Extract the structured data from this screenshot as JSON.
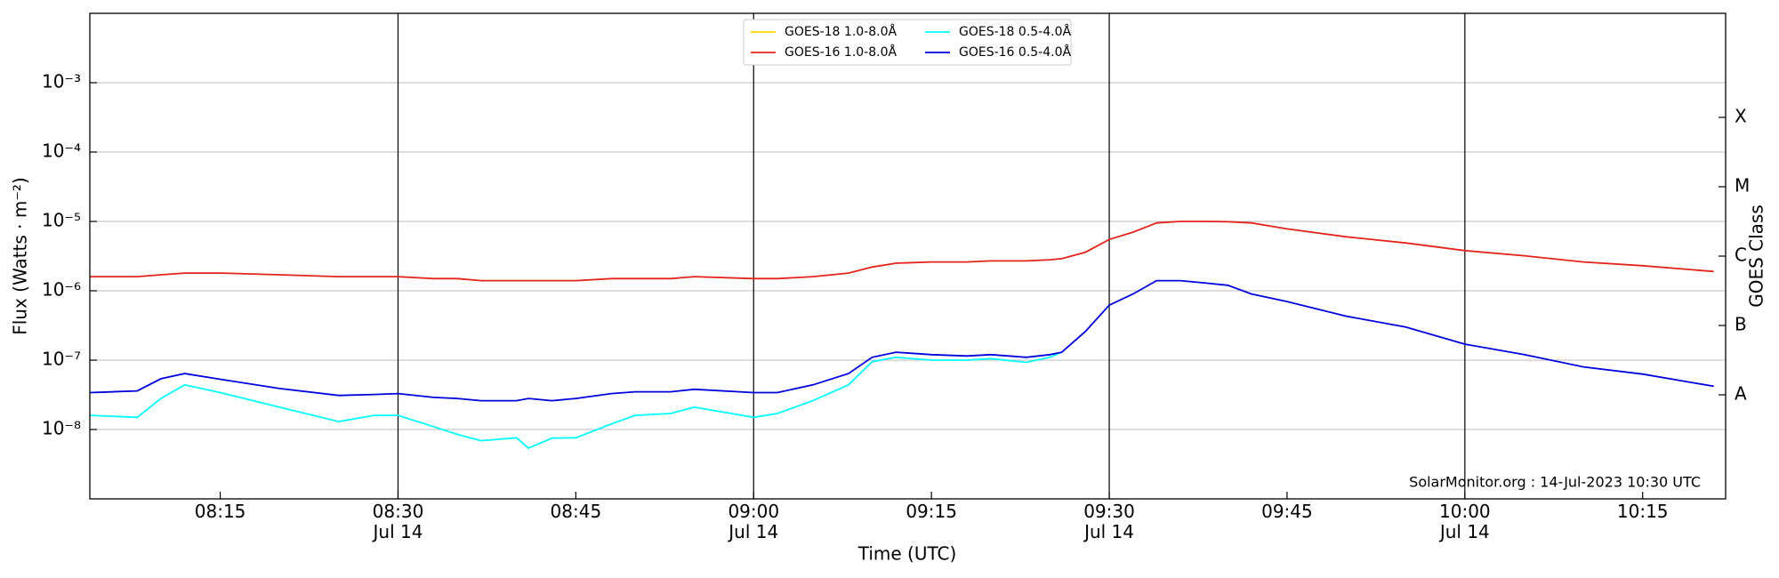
{
  "chart_data": {
    "type": "line",
    "xlabel": "Time (UTC)",
    "ylabel": "Flux (Watts · m⁻²)",
    "y2label": "GOES Class",
    "annotation": "SolarMonitor.org : 14-Jul-2023 10:30 UTC",
    "log_y": true,
    "grid": true,
    "legend": "upper center",
    "xlim": [
      "08:04",
      "10:22"
    ],
    "xticks": [
      "08:15",
      {
        "value": "08:30",
        "label": "08:30\nJul 14"
      },
      "08:45",
      {
        "value": "09:00",
        "label": "09:00\nJul 14"
      },
      "09:15",
      {
        "value": "09:30",
        "label": "09:30\nJul 14"
      },
      "09:45",
      {
        "value": "10:00",
        "label": "10:00\nJul 14"
      },
      "10:15"
    ],
    "vlines": [
      "08:30",
      "09:00",
      "09:30",
      "10:00"
    ],
    "ylim": [
      1e-09,
      0.01
    ],
    "yticks": [
      {
        "value": 0.001,
        "label": "10⁻³"
      },
      {
        "value": 0.0001,
        "label": "10⁻⁴"
      },
      {
        "value": 1e-05,
        "label": "10⁻⁵"
      },
      {
        "value": 1e-06,
        "label": "10⁻⁶"
      },
      {
        "value": 1e-07,
        "label": "10⁻⁷"
      },
      {
        "value": 1e-08,
        "label": "10⁻⁸"
      }
    ],
    "y2lim": [
      1e-09,
      0.01
    ],
    "y2ticks": [
      {
        "value": 0.000316,
        "label": "X"
      },
      {
        "value": 3.16e-05,
        "label": "M"
      },
      {
        "value": 3.16e-06,
        "label": "C"
      },
      {
        "value": 3.16e-07,
        "label": "B"
      },
      {
        "value": 3.16e-08,
        "label": "A"
      }
    ],
    "x": [
      "08:04",
      "08:08",
      "08:10",
      "08:12",
      "08:15",
      "08:20",
      "08:25",
      "08:28",
      "08:30",
      "08:33",
      "08:35",
      "08:37",
      "08:40",
      "08:41",
      "08:43",
      "08:45",
      "08:48",
      "08:50",
      "08:53",
      "08:55",
      "09:00",
      "09:02",
      "09:05",
      "09:08",
      "09:10",
      "09:12",
      "09:15",
      "09:18",
      "09:20",
      "09:23",
      "09:25",
      "09:26",
      "09:28",
      "09:30",
      "09:32",
      "09:34",
      "09:36",
      "09:38",
      "09:40",
      "09:42",
      "09:45",
      "09:50",
      "09:55",
      "10:00",
      "10:05",
      "10:10",
      "10:15",
      "10:21"
    ],
    "series": [
      {
        "name": "GOES-18 1.0-8.0Å",
        "color": "#ffd700",
        "values": [
          null,
          null,
          null,
          null,
          null,
          null,
          null,
          null,
          null,
          null,
          null,
          null,
          null,
          null,
          null,
          null,
          null,
          null,
          null,
          null,
          null,
          null,
          null,
          null,
          null,
          null,
          null,
          null,
          null,
          null,
          null,
          null,
          null,
          null,
          null,
          null,
          null,
          null,
          null,
          null,
          null,
          null,
          null,
          null,
          null,
          null,
          null,
          null
        ]
      },
      {
        "name": "GOES-16 1.0-8.0Å",
        "color": "#e3241b",
        "values": [
          1.6e-06,
          1.6e-06,
          1.7e-06,
          1.8e-06,
          1.8e-06,
          1.7e-06,
          1.6e-06,
          1.6e-06,
          1.6e-06,
          1.5e-06,
          1.5e-06,
          1.4e-06,
          1.4e-06,
          1.4e-06,
          1.4e-06,
          1.4e-06,
          1.5e-06,
          1.5e-06,
          1.5e-06,
          1.6e-06,
          1.5e-06,
          1.5e-06,
          1.6e-06,
          1.8e-06,
          2.2e-06,
          2.5e-06,
          2.6e-06,
          2.6e-06,
          2.7e-06,
          2.7e-06,
          2.8e-06,
          2.9e-06,
          3.6e-06,
          5.5e-06,
          7e-06,
          9.5e-06,
          1e-05,
          1e-05,
          9.9e-06,
          9.5e-06,
          7.8e-06,
          6e-06,
          4.9e-06,
          3.8e-06,
          3.2e-06,
          2.6e-06,
          2.3e-06,
          1.9e-06
        ]
      },
      {
        "name": "GOES-18 0.5-4.0Å",
        "color": "#00ffff",
        "values": [
          1.6e-08,
          1.5e-08,
          2.8e-08,
          4.4e-08,
          3.4e-08,
          2.1e-08,
          1.3e-08,
          1.6e-08,
          1.6e-08,
          1.1e-08,
          8.5e-09,
          6.9e-09,
          7.6e-09,
          5.4e-09,
          7.5e-09,
          7.6e-09,
          1.2e-08,
          1.6e-08,
          1.7e-08,
          2.1e-08,
          1.5e-08,
          1.7e-08,
          2.6e-08,
          4.4e-08,
          9.5e-08,
          1.1e-07,
          1e-07,
          1e-07,
          1.05e-07,
          9.3e-08,
          1.1e-07,
          1.3e-07,
          null,
          null,
          null,
          null,
          null,
          null,
          null,
          null,
          null,
          null,
          null,
          null,
          null,
          null,
          null,
          null
        ]
      },
      {
        "name": "GOES-16 0.5-4.0Å",
        "color": "#0000dd",
        "values": [
          3.4e-08,
          3.6e-08,
          5.4e-08,
          6.4e-08,
          5.3e-08,
          3.9e-08,
          3.1e-08,
          3.2e-08,
          3.3e-08,
          2.9e-08,
          2.8e-08,
          2.6e-08,
          2.6e-08,
          2.8e-08,
          2.6e-08,
          2.8e-08,
          3.3e-08,
          3.5e-08,
          3.5e-08,
          3.8e-08,
          3.4e-08,
          3.4e-08,
          4.4e-08,
          6.4e-08,
          1.1e-07,
          1.3e-07,
          1.2e-07,
          1.15e-07,
          1.2e-07,
          1.1e-07,
          1.2e-07,
          1.3e-07,
          2.6e-07,
          6.2e-07,
          9e-07,
          1.4e-06,
          1.4e-06,
          1.3e-06,
          1.2e-06,
          9e-07,
          7e-07,
          4.3e-07,
          3e-07,
          1.7e-07,
          1.2e-07,
          8e-08,
          6.3e-08,
          4.2e-08
        ]
      }
    ]
  }
}
